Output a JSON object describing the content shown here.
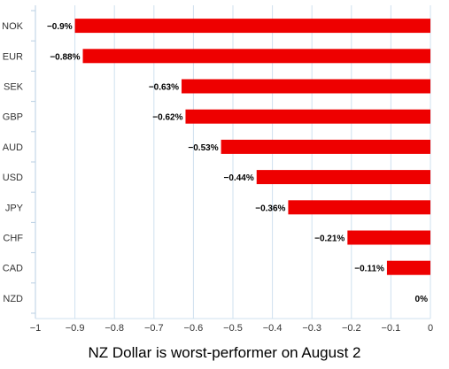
{
  "chart_data": {
    "type": "bar",
    "orientation": "horizontal",
    "title": "NZ Dollar is worst-performer on August 2",
    "categories": [
      "NOK",
      "EUR",
      "SEK",
      "GBP",
      "AUD",
      "USD",
      "JPY",
      "CHF",
      "CAD",
      "NZD"
    ],
    "values": [
      -0.9,
      -0.88,
      -0.63,
      -0.62,
      -0.53,
      -0.44,
      -0.36,
      -0.21,
      -0.11,
      0
    ],
    "data_labels": [
      "−0.9%",
      "−0.88%",
      "−0.63%",
      "−0.62%",
      "−0.53%",
      "−0.44%",
      "−0.36%",
      "−0.21%",
      "−0.11%",
      "0%"
    ],
    "xlim": [
      -1,
      0
    ],
    "xticks": [
      -1,
      -0.9,
      -0.8,
      -0.7,
      -0.6,
      -0.5,
      -0.4,
      -0.3,
      -0.2,
      -0.1,
      0
    ],
    "xtick_labels": [
      "−1",
      "−0.9",
      "−0.8",
      "−0.7",
      "−0.6",
      "−0.5",
      "−0.4",
      "−0.3",
      "−0.2",
      "−0.1",
      "0"
    ],
    "xlabel": "",
    "ylabel": "",
    "grid": true,
    "legend": "none",
    "colors": {
      "bar": "#ee0000",
      "grid": "#cfe0ef",
      "axis": "#b9cfe3"
    }
  }
}
